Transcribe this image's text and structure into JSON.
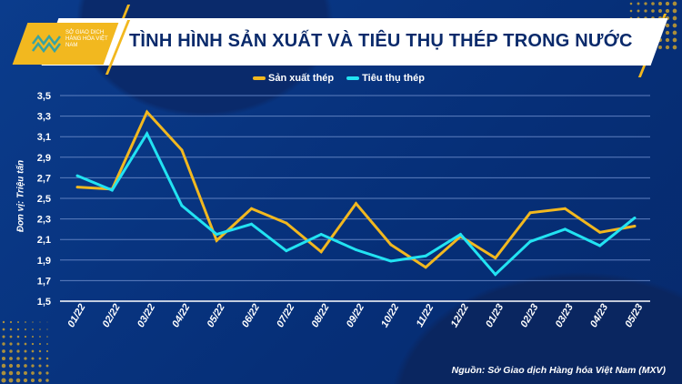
{
  "header": {
    "title": "TÌNH HÌNH SẢN XUẤT VÀ TIÊU THỤ THÉP TRONG NƯỚC",
    "logo_text": "SỞ GIAO DỊCH HÀNG HÓA VIỆT NAM"
  },
  "footer": {
    "source": "Nguồn: Sở Giao dịch Hàng hóa Việt Nam (MXV)"
  },
  "colors": {
    "background": "#06307a",
    "production": "#f2b81f",
    "consumption": "#22e3f2",
    "accent": "#f2b81f"
  },
  "chart_data": {
    "type": "line",
    "title": "TÌNH HÌNH SẢN XUẤT VÀ TIÊU THỤ THÉP TRONG NƯỚC",
    "ylabel": "Đơn vị: Triệu tấn",
    "xlabel": "",
    "ylim": [
      1.5,
      3.5
    ],
    "yticks": [
      "1,5",
      "1,7",
      "1,9",
      "2,1",
      "2,3",
      "2,5",
      "2,7",
      "2,9",
      "3,1",
      "3,3",
      "3,5"
    ],
    "grid": true,
    "legend": "top-center",
    "categories": [
      "01/22",
      "02/22",
      "03/22",
      "04/22",
      "05/22",
      "06/22",
      "07/22",
      "08/22",
      "09/22",
      "10/22",
      "11/22",
      "12/22",
      "01/23",
      "02/23",
      "03/23",
      "04/23",
      "05/23"
    ],
    "series": [
      {
        "name": "Sản xuất thép",
        "color": "#f2b81f",
        "values": [
          2.61,
          2.59,
          3.34,
          2.97,
          2.09,
          2.4,
          2.26,
          1.98,
          2.45,
          2.05,
          1.83,
          2.13,
          1.92,
          2.36,
          2.4,
          2.17,
          2.23
        ]
      },
      {
        "name": "Tiêu thụ thép",
        "color": "#22e3f2",
        "values": [
          2.72,
          2.58,
          3.13,
          2.43,
          2.15,
          2.25,
          1.99,
          2.15,
          2.0,
          1.89,
          1.94,
          2.15,
          1.76,
          2.08,
          2.2,
          2.04,
          2.31
        ]
      }
    ]
  }
}
